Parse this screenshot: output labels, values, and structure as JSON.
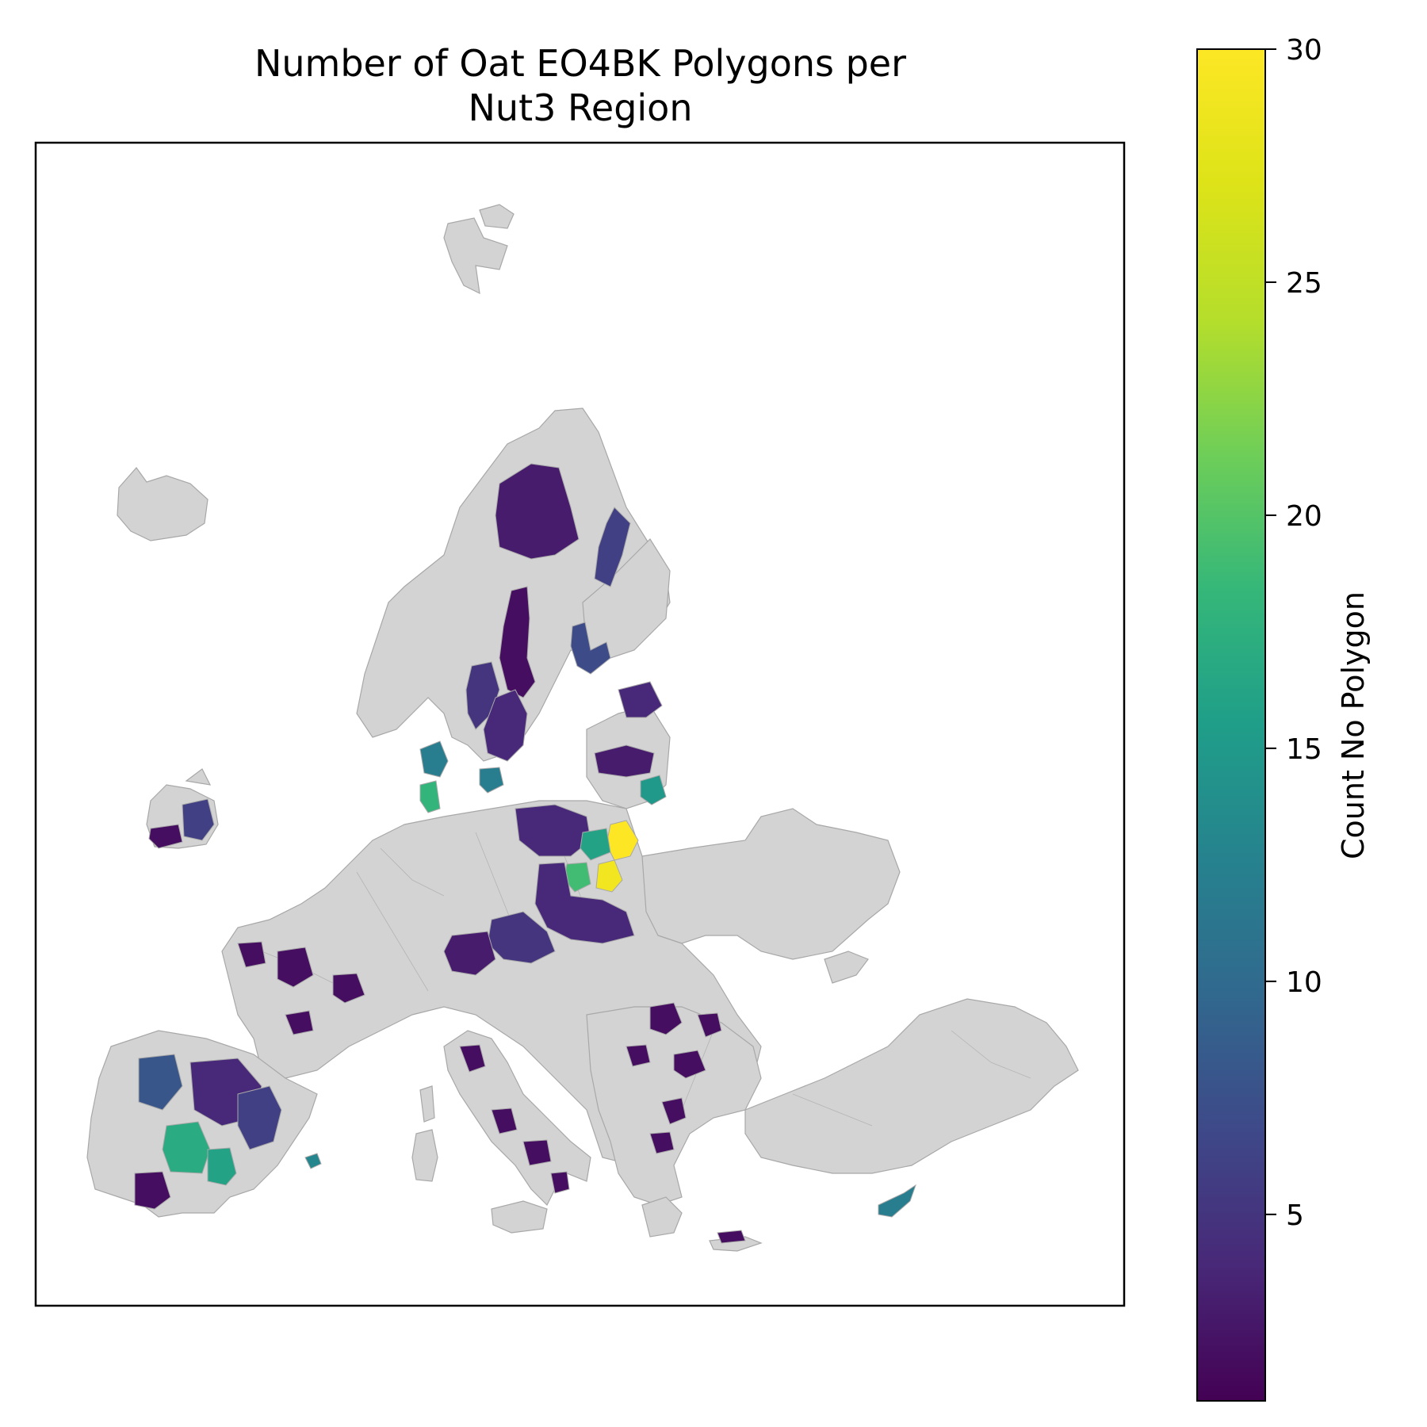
{
  "title_lines": [
    "Number of Oat EO4BK Polygons per",
    "Nut3 Region"
  ],
  "colorbar": {
    "label": "Count No Polygon",
    "min": 1,
    "max": 30,
    "ticks": [
      5,
      10,
      15,
      20,
      25,
      30
    ],
    "colormap": "viridis"
  },
  "colors": {
    "no_data": "#d3d3d3",
    "boundary": "#a8a8a8",
    "frame": "#000000"
  },
  "regions": [
    {
      "id": "north-sweden",
      "value": 3
    },
    {
      "id": "finland-east",
      "value": 6
    },
    {
      "id": "sweden-central-strip",
      "value": 2
    },
    {
      "id": "finland-west",
      "value": 7
    },
    {
      "id": "sweden-south-a",
      "value": 5
    },
    {
      "id": "sweden-south-b",
      "value": 4
    },
    {
      "id": "sweden-scania",
      "value": 12
    },
    {
      "id": "denmark-north",
      "value": 12
    },
    {
      "id": "denmark-jutland",
      "value": 18
    },
    {
      "id": "baltic-estonia",
      "value": 4
    },
    {
      "id": "baltic-latvia",
      "value": 3
    },
    {
      "id": "baltic-lithuania-east",
      "value": 15
    },
    {
      "id": "poland-north",
      "value": 4
    },
    {
      "id": "poland-northeast-bright",
      "value": 30
    },
    {
      "id": "poland-east-bright",
      "value": 29
    },
    {
      "id": "poland-teal",
      "value": 16
    },
    {
      "id": "poland-green",
      "value": 19
    },
    {
      "id": "poland-central",
      "value": 4
    },
    {
      "id": "poland-south",
      "value": 5
    },
    {
      "id": "czechia",
      "value": 3
    },
    {
      "id": "ireland-east",
      "value": 6
    },
    {
      "id": "ireland-south",
      "value": 2
    },
    {
      "id": "spain-northwest",
      "value": 8
    },
    {
      "id": "spain-central-teal",
      "value": 17
    },
    {
      "id": "spain-southeast-teal",
      "value": 16
    },
    {
      "id": "spain-central",
      "value": 4
    },
    {
      "id": "spain-south",
      "value": 2
    },
    {
      "id": "spain-east",
      "value": 6
    },
    {
      "id": "balearic",
      "value": 13
    },
    {
      "id": "cyprus",
      "value": 12
    },
    {
      "id": "france-various",
      "value": 2
    },
    {
      "id": "italy-various",
      "value": 2
    },
    {
      "id": "romania-various",
      "value": 2
    },
    {
      "id": "greece-various",
      "value": 2
    }
  ]
}
